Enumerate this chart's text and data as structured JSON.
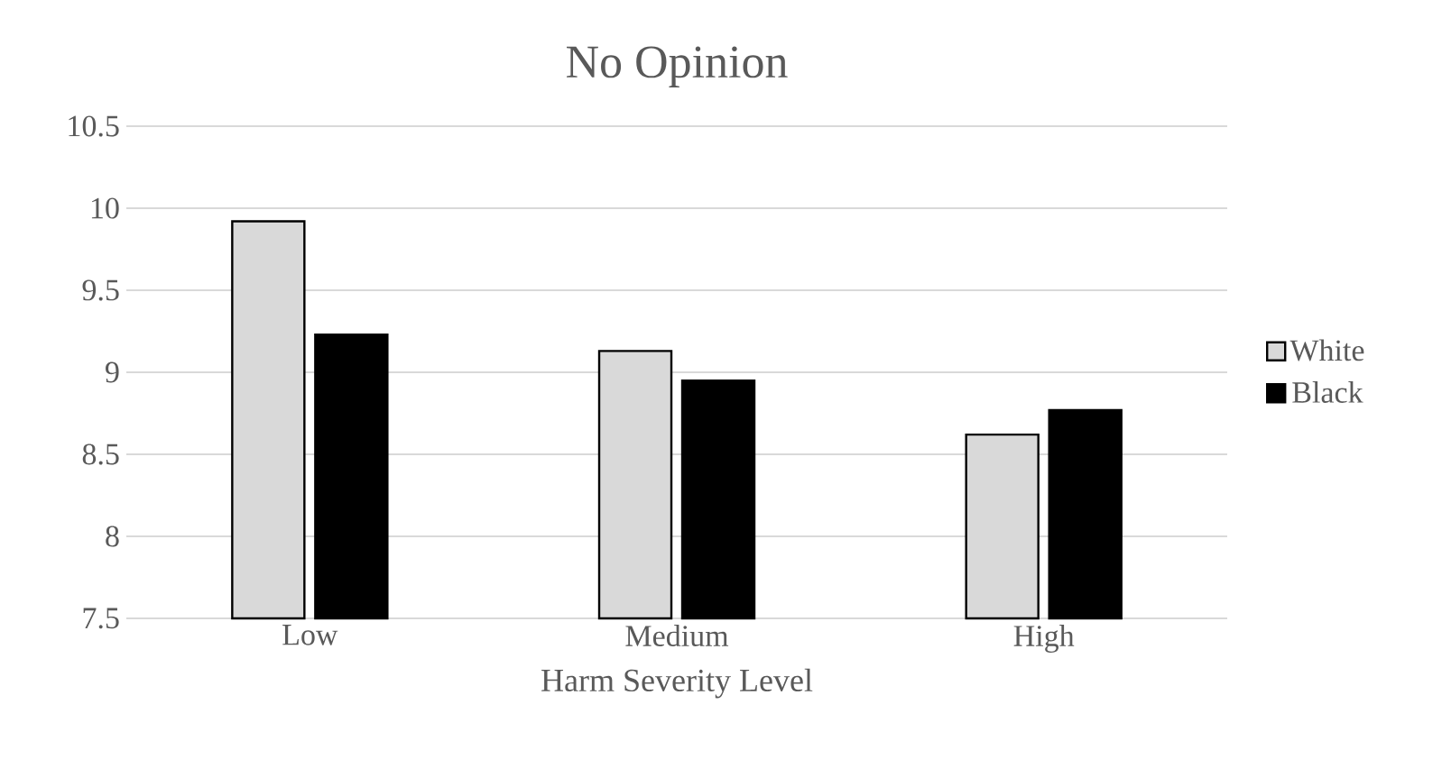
{
  "chart_data": {
    "type": "bar",
    "title": "No Opinion",
    "xlabel": "Harm Severity Level",
    "categories": [
      "Low",
      "Medium",
      "High"
    ],
    "series": [
      {
        "name": "White",
        "color": "#d9d9d9",
        "values": [
          9.92,
          9.13,
          8.62
        ]
      },
      {
        "name": "Black",
        "color": "#000000",
        "values": [
          9.23,
          8.95,
          8.77
        ]
      }
    ],
    "ylim": [
      7.5,
      10.5
    ],
    "yticks": [
      7.5,
      8,
      8.5,
      9,
      9.5,
      10,
      10.5
    ],
    "grid": "y",
    "legend": "right"
  }
}
